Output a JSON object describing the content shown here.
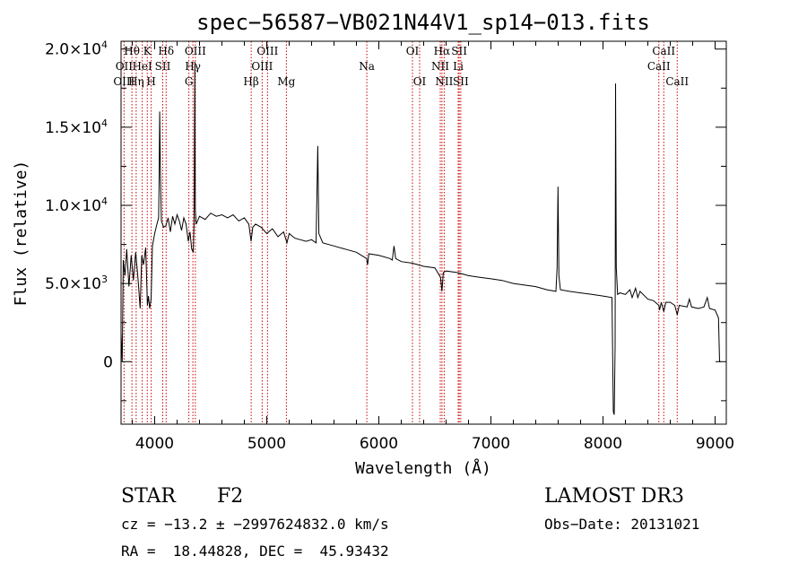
{
  "chart_data": {
    "type": "line",
    "title": "spec−56587−VB021N44V1_sp14−013.fits",
    "xlabel": "Wavelength (Å)",
    "ylabel": "Flux (relative)",
    "xlim": [
      3700,
      9100
    ],
    "ylim": [
      -4000,
      20500
    ],
    "x_ticks": [
      {
        "value": 4000,
        "label": "4000"
      },
      {
        "value": 5000,
        "label": "5000"
      },
      {
        "value": 6000,
        "label": "6000"
      },
      {
        "value": 7000,
        "label": "7000"
      },
      {
        "value": 8000,
        "label": "8000"
      },
      {
        "value": 9000,
        "label": "9000"
      }
    ],
    "y_ticks": [
      {
        "value": 0,
        "mant": "0",
        "exp": ""
      },
      {
        "value": 5000,
        "mant": "5.0×10",
        "exp": "3"
      },
      {
        "value": 10000,
        "mant": "1.0×10",
        "exp": "4"
      },
      {
        "value": 15000,
        "mant": "1.5×10",
        "exp": "4"
      },
      {
        "value": 20000,
        "mant": "2.0×10",
        "exp": "4"
      }
    ],
    "spectrum": [
      [
        3700,
        1800
      ],
      [
        3710,
        0
      ],
      [
        3720,
        6500
      ],
      [
        3735,
        5500
      ],
      [
        3750,
        7200
      ],
      [
        3770,
        4800
      ],
      [
        3790,
        6800
      ],
      [
        3810,
        5200
      ],
      [
        3830,
        7000
      ],
      [
        3850,
        5400
      ],
      [
        3870,
        3400
      ],
      [
        3885,
        6800
      ],
      [
        3900,
        6200
      ],
      [
        3920,
        7300
      ],
      [
        3935,
        3600
      ],
      [
        3945,
        4200
      ],
      [
        3955,
        3400
      ],
      [
        3968,
        4000
      ],
      [
        3980,
        7400
      ],
      [
        4000,
        8200
      ],
      [
        4020,
        8800
      ],
      [
        4035,
        9200
      ],
      [
        4040,
        11800
      ],
      [
        4045,
        16000
      ],
      [
        4050,
        12500
      ],
      [
        4060,
        9000
      ],
      [
        4080,
        8600
      ],
      [
        4100,
        8700
      ],
      [
        4120,
        9200
      ],
      [
        4140,
        8300
      ],
      [
        4160,
        9300
      ],
      [
        4180,
        8800
      ],
      [
        4200,
        9400
      ],
      [
        4220,
        9000
      ],
      [
        4240,
        8400
      ],
      [
        4260,
        9200
      ],
      [
        4280,
        8800
      ],
      [
        4300,
        7700
      ],
      [
        4315,
        8300
      ],
      [
        4330,
        7200
      ],
      [
        4345,
        7000
      ],
      [
        4352,
        9200
      ],
      [
        4358,
        19200
      ],
      [
        4362,
        9800
      ],
      [
        4370,
        8800
      ],
      [
        4400,
        9300
      ],
      [
        4450,
        9100
      ],
      [
        4500,
        9500
      ],
      [
        4550,
        9300
      ],
      [
        4600,
        9400
      ],
      [
        4650,
        9200
      ],
      [
        4700,
        9400
      ],
      [
        4750,
        9000
      ],
      [
        4800,
        9200
      ],
      [
        4840,
        8800
      ],
      [
        4860,
        7700
      ],
      [
        4875,
        8600
      ],
      [
        4900,
        8800
      ],
      [
        4950,
        8600
      ],
      [
        5000,
        8200
      ],
      [
        5050,
        8500
      ],
      [
        5100,
        8000
      ],
      [
        5150,
        8300
      ],
      [
        5180,
        7600
      ],
      [
        5200,
        8200
      ],
      [
        5250,
        7900
      ],
      [
        5300,
        7800
      ],
      [
        5350,
        7700
      ],
      [
        5400,
        7800
      ],
      [
        5440,
        7600
      ],
      [
        5455,
        13800
      ],
      [
        5465,
        8200
      ],
      [
        5500,
        7600
      ],
      [
        5600,
        7400
      ],
      [
        5700,
        7200
      ],
      [
        5800,
        7000
      ],
      [
        5890,
        6600
      ],
      [
        5900,
        6200
      ],
      [
        5910,
        6900
      ],
      [
        6000,
        6800
      ],
      [
        6100,
        6600
      ],
      [
        6120,
        6500
      ],
      [
        6135,
        7400
      ],
      [
        6150,
        6600
      ],
      [
        6200,
        6400
      ],
      [
        6300,
        6300
      ],
      [
        6400,
        6100
      ],
      [
        6500,
        6000
      ],
      [
        6550,
        5400
      ],
      [
        6563,
        4500
      ],
      [
        6575,
        5700
      ],
      [
        6600,
        5800
      ],
      [
        6700,
        5700
      ],
      [
        6800,
        5500
      ],
      [
        6900,
        5400
      ],
      [
        7000,
        5300
      ],
      [
        7100,
        5200
      ],
      [
        7200,
        5000
      ],
      [
        7300,
        4900
      ],
      [
        7400,
        4800
      ],
      [
        7500,
        4600
      ],
      [
        7580,
        4500
      ],
      [
        7590,
        6000
      ],
      [
        7598,
        11200
      ],
      [
        7606,
        5500
      ],
      [
        7620,
        4600
      ],
      [
        7700,
        4500
      ],
      [
        7800,
        4400
      ],
      [
        7900,
        4300
      ],
      [
        8000,
        4200
      ],
      [
        8080,
        4100
      ],
      [
        8092,
        -3200
      ],
      [
        8100,
        -3400
      ],
      [
        8108,
        1000
      ],
      [
        8112,
        17800
      ],
      [
        8118,
        6000
      ],
      [
        8130,
        4300
      ],
      [
        8150,
        4400
      ],
      [
        8200,
        4300
      ],
      [
        8240,
        4600
      ],
      [
        8260,
        4100
      ],
      [
        8290,
        4700
      ],
      [
        8310,
        4100
      ],
      [
        8330,
        4500
      ],
      [
        8400,
        4000
      ],
      [
        8450,
        3900
      ],
      [
        8498,
        3600
      ],
      [
        8505,
        3300
      ],
      [
        8520,
        3800
      ],
      [
        8542,
        3200
      ],
      [
        8560,
        3800
      ],
      [
        8600,
        3800
      ],
      [
        8640,
        3600
      ],
      [
        8662,
        3000
      ],
      [
        8680,
        3600
      ],
      [
        8750,
        3500
      ],
      [
        8770,
        4000
      ],
      [
        8790,
        3500
      ],
      [
        8850,
        3400
      ],
      [
        8900,
        3500
      ],
      [
        8930,
        4100
      ],
      [
        8950,
        3400
      ],
      [
        9000,
        3300
      ],
      [
        9030,
        2800
      ],
      [
        9040,
        0
      ],
      [
        9050,
        0
      ]
    ],
    "lines": [
      {
        "label": "Hθ",
        "wl": 3797,
        "row": 0
      },
      {
        "label": "OII",
        "wl": 3727,
        "row": 1
      },
      {
        "label": "OIII",
        "wl": 3727,
        "row": 2
      },
      {
        "label": "K",
        "wl": 3934,
        "row": 0
      },
      {
        "label": "HeI",
        "wl": 3889,
        "row": 1
      },
      {
        "label": "Hη",
        "wl": 3835,
        "row": 2
      },
      {
        "label": "H",
        "wl": 3969,
        "row": 2
      },
      {
        "label": "SII",
        "wl": 4072,
        "row": 1
      },
      {
        "label": "Hδ",
        "wl": 4102,
        "row": 0
      },
      {
        "label": "OIII",
        "wl": 4363,
        "row": 0
      },
      {
        "label": "Hγ",
        "wl": 4341,
        "row": 1
      },
      {
        "label": "G",
        "wl": 4305,
        "row": 2
      },
      {
        "label": "Hβ",
        "wl": 4861,
        "row": 2
      },
      {
        "label": "OIII",
        "wl": 5007,
        "row": 0
      },
      {
        "label": "OIII",
        "wl": 4959,
        "row": 1
      },
      {
        "label": "Mg",
        "wl": 5175,
        "row": 2
      },
      {
        "label": "Na",
        "wl": 5893,
        "row": 1
      },
      {
        "label": "OI",
        "wl": 6300,
        "row": 0
      },
      {
        "label": "OI",
        "wl": 6364,
        "row": 2
      },
      {
        "label": "Hα",
        "wl": 6563,
        "row": 0
      },
      {
        "label": "NII",
        "wl": 6548,
        "row": 1
      },
      {
        "label": "NII",
        "wl": 6583,
        "row": 2
      },
      {
        "label": "SII",
        "wl": 6717,
        "row": 0
      },
      {
        "label": "Li",
        "wl": 6708,
        "row": 1
      },
      {
        "label": "SII",
        "wl": 6731,
        "row": 2
      },
      {
        "label": "CaII",
        "wl": 8542,
        "row": 0
      },
      {
        "label": "CaII",
        "wl": 8498,
        "row": 1
      },
      {
        "label": "CaII",
        "wl": 8662,
        "row": 2
      }
    ]
  },
  "info": {
    "object_class": "STAR",
    "subclass": "F2",
    "survey": "LAMOST DR3",
    "redshift": "cz = −13.2 ± −2997624832.0 km/s",
    "obs_date": "Obs−Date: 20131021",
    "coords": "RA =  18.44828, DEC =  45.93432"
  },
  "colors": {
    "spectrum": "#000000",
    "line_markers": "#cc0000",
    "text": "#000000",
    "background": "#ffffff"
  }
}
